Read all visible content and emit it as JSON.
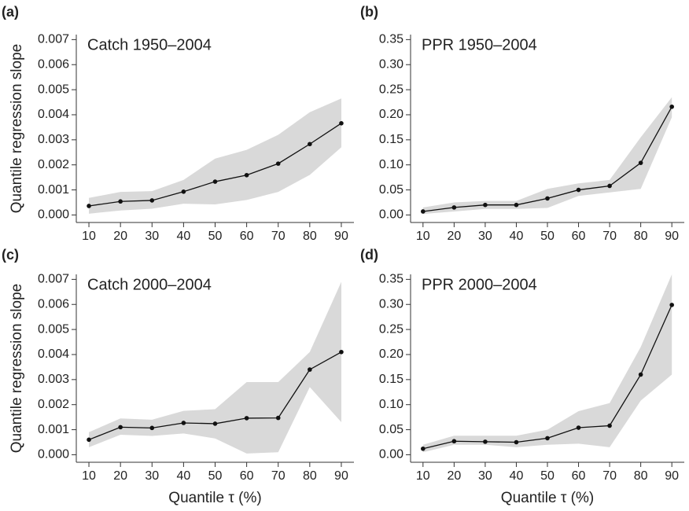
{
  "chart_data": [
    {
      "type": "line",
      "panel_label": "(a)",
      "title": "Catch 1950–2004",
      "ylabel": "Quantile regression slope",
      "x": [
        10,
        20,
        30,
        40,
        50,
        60,
        70,
        80,
        90
      ],
      "values": [
        0.00036,
        0.00054,
        0.00058,
        0.00093,
        0.00133,
        0.00159,
        0.00205,
        0.00283,
        0.00366
      ],
      "upper": [
        0.00068,
        0.00092,
        0.00095,
        0.0014,
        0.00225,
        0.0026,
        0.0032,
        0.0041,
        0.00465
      ],
      "lower": [
        5e-05,
        0.00018,
        0.00025,
        0.00045,
        0.00042,
        0.0006,
        0.00092,
        0.0016,
        0.0027
      ],
      "color": "#111111",
      "band_color": "#d9d9d9",
      "xlim": [
        6,
        94
      ],
      "xticks": [
        10,
        20,
        30,
        40,
        50,
        60,
        70,
        80,
        90
      ],
      "ylim": [
        -0.0003,
        0.0072
      ],
      "yticks": [
        {
          "value": 0,
          "label": "0.000"
        },
        {
          "value": 0.001,
          "label": "0.001"
        },
        {
          "value": 0.002,
          "label": "0.002"
        },
        {
          "value": 0.003,
          "label": "0.003"
        },
        {
          "value": 0.004,
          "label": "0.004"
        },
        {
          "value": 0.005,
          "label": "0.005"
        },
        {
          "value": 0.006,
          "label": "0.006"
        },
        {
          "value": 0.007,
          "label": "0.007"
        }
      ]
    },
    {
      "type": "line",
      "panel_label": "(b)",
      "title": "PPR 1950–2004",
      "x": [
        10,
        20,
        30,
        40,
        50,
        60,
        70,
        80,
        90
      ],
      "values": [
        0.007,
        0.015,
        0.02,
        0.02,
        0.033,
        0.05,
        0.058,
        0.104,
        0.216
      ],
      "upper": [
        0.015,
        0.025,
        0.028,
        0.028,
        0.052,
        0.063,
        0.07,
        0.155,
        0.235
      ],
      "lower": [
        0.002,
        0.007,
        0.012,
        0.012,
        0.014,
        0.038,
        0.045,
        0.052,
        0.195
      ],
      "color": "#111111",
      "band_color": "#d9d9d9",
      "xlim": [
        6,
        94
      ],
      "xticks": [
        10,
        20,
        30,
        40,
        50,
        60,
        70,
        80,
        90
      ],
      "ylim": [
        -0.015,
        0.36
      ],
      "yticks": [
        {
          "value": 0,
          "label": "0.00"
        },
        {
          "value": 0.05,
          "label": "0.05"
        },
        {
          "value": 0.1,
          "label": "0.10"
        },
        {
          "value": 0.15,
          "label": "0.15"
        },
        {
          "value": 0.2,
          "label": "0.20"
        },
        {
          "value": 0.25,
          "label": "0.25"
        },
        {
          "value": 0.3,
          "label": "0.30"
        },
        {
          "value": 0.35,
          "label": "0.35"
        }
      ]
    },
    {
      "type": "line",
      "panel_label": "(c)",
      "title": "Catch 2000–2004",
      "ylabel": "Quantile regression slope",
      "xlabel": "Quantile τ (%)",
      "x": [
        10,
        20,
        30,
        40,
        50,
        60,
        70,
        80,
        90
      ],
      "values": [
        0.0006,
        0.0011,
        0.00107,
        0.00127,
        0.00124,
        0.00146,
        0.00147,
        0.0034,
        0.0041
      ],
      "upper": [
        0.0009,
        0.00145,
        0.0014,
        0.00175,
        0.00182,
        0.0029,
        0.0029,
        0.0041,
        0.0069
      ],
      "lower": [
        0.0003,
        0.0008,
        0.00075,
        0.00085,
        0.00065,
        5e-05,
        0.0001,
        0.0027,
        0.0013
      ],
      "color": "#111111",
      "band_color": "#d9d9d9",
      "xlim": [
        6,
        94
      ],
      "xticks": [
        10,
        20,
        30,
        40,
        50,
        60,
        70,
        80,
        90
      ],
      "ylim": [
        -0.0003,
        0.0072
      ],
      "yticks": [
        {
          "value": 0,
          "label": "0.000"
        },
        {
          "value": 0.001,
          "label": "0.001"
        },
        {
          "value": 0.002,
          "label": "0.002"
        },
        {
          "value": 0.003,
          "label": "0.003"
        },
        {
          "value": 0.004,
          "label": "0.004"
        },
        {
          "value": 0.005,
          "label": "0.005"
        },
        {
          "value": 0.006,
          "label": "0.006"
        },
        {
          "value": 0.007,
          "label": "0.007"
        }
      ]
    },
    {
      "type": "line",
      "panel_label": "(d)",
      "title": "PPR 2000–2004",
      "xlabel": "Quantile τ (%)",
      "x": [
        10,
        20,
        30,
        40,
        50,
        60,
        70,
        80,
        90
      ],
      "values": [
        0.012,
        0.027,
        0.026,
        0.025,
        0.033,
        0.054,
        0.058,
        0.16,
        0.299
      ],
      "upper": [
        0.02,
        0.038,
        0.038,
        0.038,
        0.05,
        0.087,
        0.103,
        0.215,
        0.36
      ],
      "lower": [
        0.005,
        0.02,
        0.02,
        0.015,
        0.02,
        0.022,
        0.015,
        0.108,
        0.16
      ],
      "color": "#111111",
      "band_color": "#d9d9d9",
      "xlim": [
        6,
        94
      ],
      "xticks": [
        10,
        20,
        30,
        40,
        50,
        60,
        70,
        80,
        90
      ],
      "ylim": [
        -0.015,
        0.36
      ],
      "yticks": [
        {
          "value": 0,
          "label": "0.00"
        },
        {
          "value": 0.05,
          "label": "0.05"
        },
        {
          "value": 0.1,
          "label": "0.10"
        },
        {
          "value": 0.15,
          "label": "0.15"
        },
        {
          "value": 0.2,
          "label": "0.20"
        },
        {
          "value": 0.25,
          "label": "0.25"
        },
        {
          "value": 0.3,
          "label": "0.30"
        },
        {
          "value": 0.35,
          "label": "0.35"
        }
      ]
    }
  ]
}
